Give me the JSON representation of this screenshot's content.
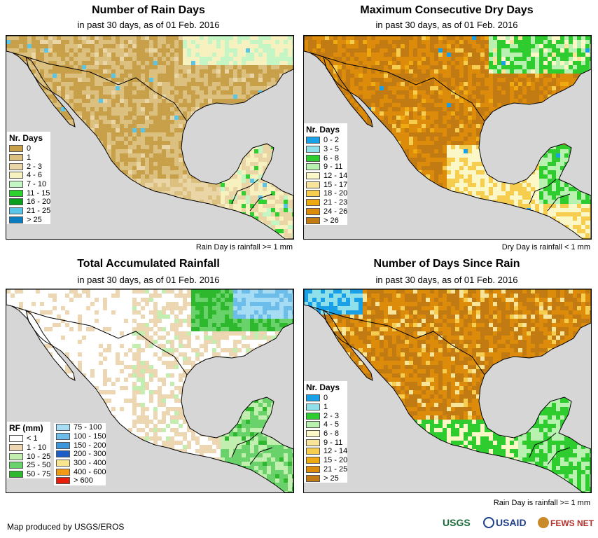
{
  "panels": [
    {
      "id": "rain-days",
      "title": "Number of Rain Days",
      "subtitle": "in past 30 days, as of 01 Feb. 2016",
      "legend_title": "Nr. Days",
      "legend": [
        {
          "label": "0",
          "color": "#c9a04a"
        },
        {
          "label": "1",
          "color": "#dcc080"
        },
        {
          "label": "2 - 3",
          "color": "#ead5a6"
        },
        {
          "label": "4 - 6",
          "color": "#f7f1c0"
        },
        {
          "label": "7 - 10",
          "color": "#c4f5c4"
        },
        {
          "label": "11 - 15",
          "color": "#2ed22e"
        },
        {
          "label": "16 - 20",
          "color": "#0aa01e"
        },
        {
          "label": "21 - 25",
          "color": "#5bc5e8"
        },
        {
          "label": "> 25",
          "color": "#0a7cc0"
        }
      ],
      "note": "Rain Day is rainfall >= 1 mm"
    },
    {
      "id": "dry-days",
      "title": "Maximum Consecutive Dry Days",
      "subtitle": "in past 30 days, as of 01 Feb. 2016",
      "legend_title": "Nr. Days",
      "legend": [
        {
          "label": "0 - 2",
          "color": "#1aa0e6"
        },
        {
          "label": "3 - 5",
          "color": "#8fe0ea"
        },
        {
          "label": "6 - 8",
          "color": "#2ecc2e"
        },
        {
          "label": "9 - 11",
          "color": "#b9f2b0"
        },
        {
          "label": "12 - 14",
          "color": "#fbf7c6"
        },
        {
          "label": "15 - 17",
          "color": "#f9e59a"
        },
        {
          "label": "18 - 20",
          "color": "#f6cd4e"
        },
        {
          "label": "21 - 23",
          "color": "#eeaa10"
        },
        {
          "label": "24 - 26",
          "color": "#dc8c0a"
        },
        {
          "label": "> 26",
          "color": "#c27a12"
        }
      ],
      "note": "Dry Day is rainfall < 1 mm"
    },
    {
      "id": "total-rainfall",
      "title": "Total Accumulated Rainfall",
      "subtitle": "in past 30 days, as of 01 Feb. 2016",
      "legend_title": "RF (mm)",
      "legend": [
        {
          "label": "< 1",
          "color": "#ffffff"
        },
        {
          "label": "1 - 10",
          "color": "#ecd7b2"
        },
        {
          "label": "10 - 25",
          "color": "#c2efb0"
        },
        {
          "label": "25 - 50",
          "color": "#6ad26a"
        },
        {
          "label": "50 - 75",
          "color": "#2eb82e"
        }
      ],
      "legend2": [
        {
          "label": "75 - 100",
          "color": "#a6ddf4"
        },
        {
          "label": "100 - 150",
          "color": "#6cbdea"
        },
        {
          "label": "150 - 200",
          "color": "#3c96dc"
        },
        {
          "label": "200 - 300",
          "color": "#1e5cc6"
        },
        {
          "label": "300 - 400",
          "color": "#f9e68c"
        },
        {
          "label": "400 - 600",
          "color": "#f29a12"
        },
        {
          "label": "> 600",
          "color": "#e61e0a"
        }
      ],
      "note": ""
    },
    {
      "id": "since-rain",
      "title": "Number of Days Since Rain",
      "subtitle": "in past 30 days, as of 01 Feb. 2016",
      "legend_title": "Nr. Days",
      "legend": [
        {
          "label": "0",
          "color": "#1aa0e6"
        },
        {
          "label": "1",
          "color": "#8fe0ea"
        },
        {
          "label": "2 - 3",
          "color": "#2ecc2e"
        },
        {
          "label": "4 - 5",
          "color": "#b9f2b0"
        },
        {
          "label": "6 - 8",
          "color": "#fbf7c6"
        },
        {
          "label": "9 - 11",
          "color": "#f9e59a"
        },
        {
          "label": "12 - 14",
          "color": "#f6cd4e"
        },
        {
          "label": "15 - 20",
          "color": "#eeaa10"
        },
        {
          "label": "21 - 25",
          "color": "#dc8c0a"
        },
        {
          "label": "> 25",
          "color": "#c27a12"
        }
      ],
      "note": "Rain Day is rainfall >= 1 mm"
    }
  ],
  "footer": {
    "credit": "Map produced by USGS/EROS",
    "logos": [
      "USGS",
      "USAID",
      "FEWS NET"
    ]
  }
}
